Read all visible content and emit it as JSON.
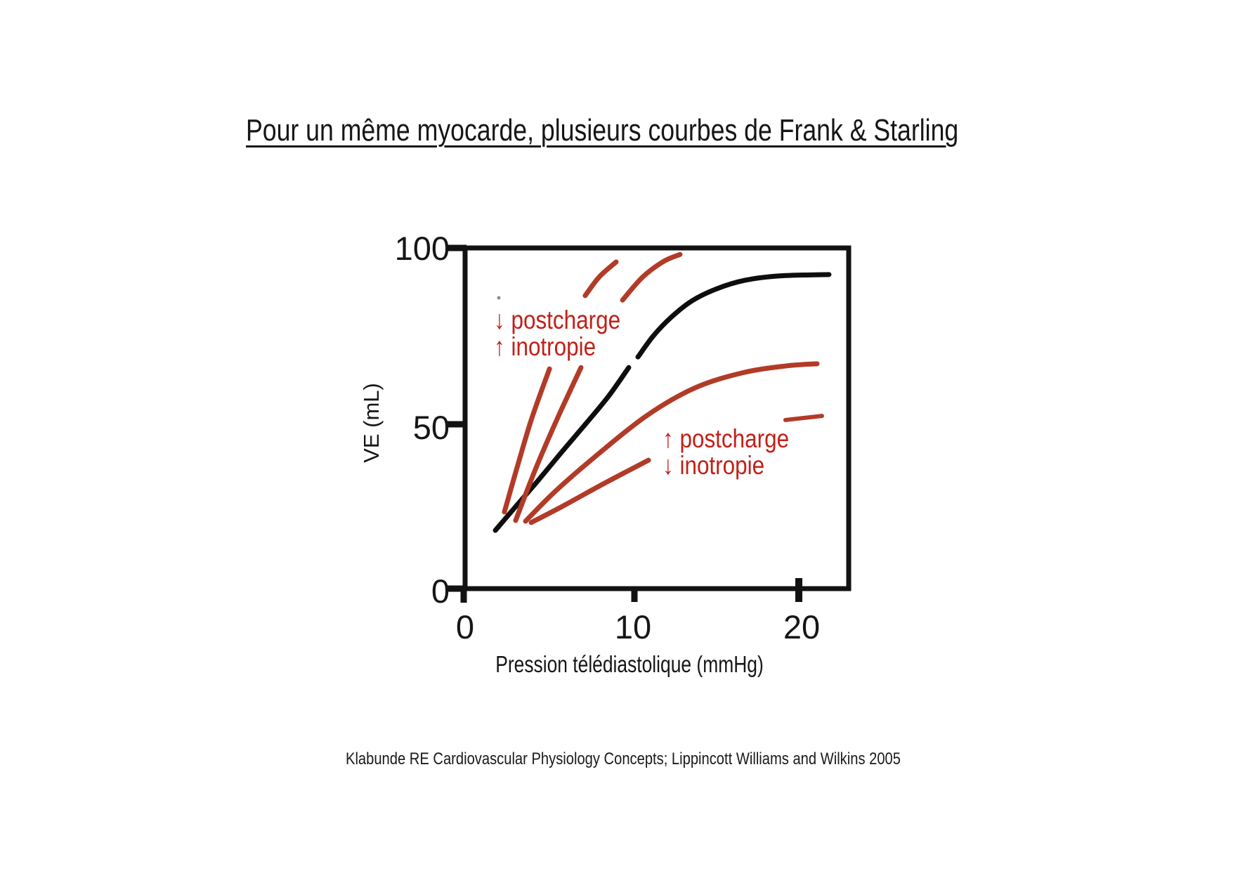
{
  "slide": {
    "title": "Pour un même myocarde, plusieurs courbes de Frank & Starling",
    "citation": "Klabunde RE Cardiovascular Physiology Concepts; Lippincott Williams and Wilkins 2005"
  },
  "colors": {
    "text_black": "#161616",
    "axis_black": "#121212",
    "curve_black": "#0e0e0e",
    "curve_red": "#b23b28",
    "annotation_red": "#c22018"
  },
  "chart_data": {
    "type": "line",
    "title": "",
    "xlabel": "Pression télédiastolique (mmHg)",
    "ylabel": "VE (mL)",
    "x_ticks": [
      "0",
      "10",
      "20"
    ],
    "y_ticks": [
      "0",
      "50",
      "100"
    ],
    "xlim": [
      0,
      23
    ],
    "ylim": [
      0,
      100
    ],
    "grid": false,
    "legend_position": "none",
    "annotations": [
      {
        "id": "haut-gauche",
        "lines": [
          "↓ postcharge",
          "↑ inotropie"
        ]
      },
      {
        "id": "bas-droite",
        "lines": [
          "↑ postcharge",
          "↓ inotropie"
        ]
      }
    ],
    "series": [
      {
        "name": "courbe-frank-starling-normale",
        "color": "#0e0e0e",
        "width": 7,
        "segments": [
          [
            [
              1.89,
              17.1
            ],
            [
              3.14,
              24.3
            ],
            [
              4.4,
              31.5
            ],
            [
              5.87,
              40.2
            ],
            [
              7.34,
              48.7
            ],
            [
              8.68,
              56.7
            ],
            [
              9.85,
              64.9
            ]
          ],
          [
            [
              10.4,
              68.0
            ],
            [
              11.32,
              74.2
            ],
            [
              12.37,
              79.6
            ],
            [
              13.63,
              84.5
            ],
            [
              15.09,
              88.0
            ],
            [
              16.77,
              90.5
            ],
            [
              18.87,
              91.8
            ],
            [
              21.8,
              92.2
            ]
          ]
        ]
      },
      {
        "name": "courbe-baisse-postcharge-hausse-inotropie-externe",
        "color": "#b23b28",
        "width": 7,
        "segments": [
          [
            [
              2.43,
              22.5
            ],
            [
              3.23,
              36.3
            ],
            [
              4.07,
              50.1
            ],
            [
              5.12,
              64.5
            ]
          ],
          [
            [
              7.25,
              86.0
            ],
            [
              8.09,
              91.5
            ],
            [
              9.1,
              95.9
            ]
          ]
        ]
      },
      {
        "name": "courbe-baisse-postcharge-hausse-inotropie-interne",
        "color": "#b23b28",
        "width": 7,
        "segments": [
          [
            [
              3.1,
              20.0
            ],
            [
              4.32,
              35.5
            ],
            [
              5.66,
              50.7
            ],
            [
              7.0,
              64.9
            ]
          ],
          [
            [
              9.48,
              84.7
            ],
            [
              10.69,
              91.5
            ],
            [
              11.95,
              96.1
            ],
            [
              12.91,
              98.1
            ]
          ]
        ]
      },
      {
        "name": "courbe-hausse-postcharge-baisse-inotropie-interne",
        "color": "#b23b28",
        "width": 7,
        "segments": [
          [
            [
              3.69,
              19.8
            ],
            [
              5.45,
              28.5
            ],
            [
              7.76,
              38.4
            ],
            [
              10.9,
              50.7
            ],
            [
              13.84,
              59.0
            ],
            [
              16.77,
              63.5
            ],
            [
              19.29,
              65.4
            ],
            [
              21.09,
              66.0
            ]
          ]
        ]
      },
      {
        "name": "courbe-hausse-postcharge-baisse-inotropie-externe",
        "color": "#b23b28",
        "width": 7,
        "segments": [
          [
            [
              4.03,
              19.4
            ],
            [
              5.87,
              24.1
            ],
            [
              8.39,
              30.9
            ],
            [
              11.03,
              37.7
            ]
          ]
        ]
      },
      {
        "name": "segment-residuel-droite",
        "color": "#b23b28",
        "width": 6,
        "segments": [
          [
            [
              19.2,
              49.5
            ],
            [
              21.38,
              50.7
            ]
          ]
        ]
      }
    ]
  }
}
